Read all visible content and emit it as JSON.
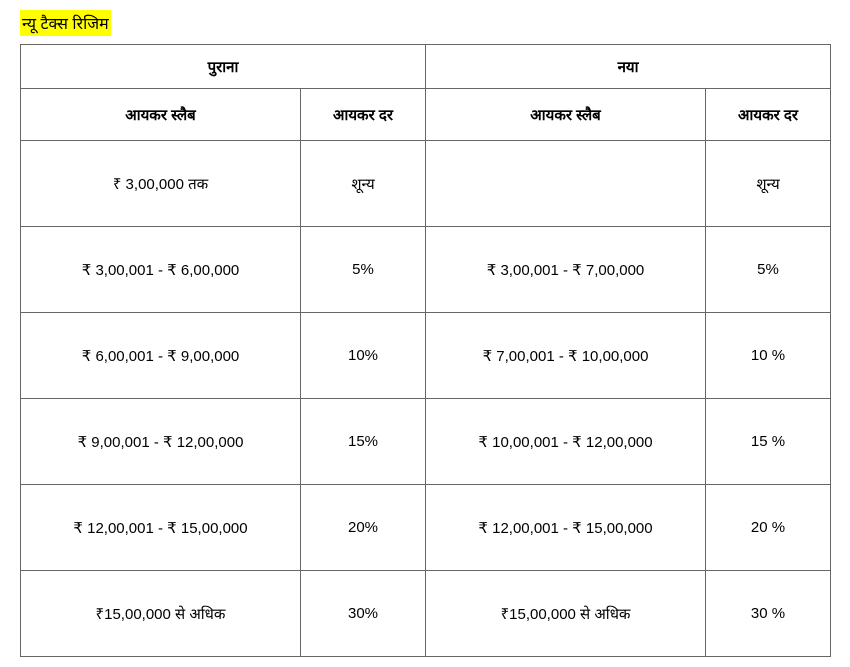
{
  "title": "न्यू टैक्स रिजिम",
  "table": {
    "type": "table",
    "background_color": "#ffffff",
    "border_color": "#666666",
    "text_color": "#000000",
    "font_size": 15,
    "header_font_weight": 700,
    "title_highlight_color": "#ffff00",
    "top_headers": {
      "old": "पुराना",
      "new": "नया"
    },
    "sub_headers": {
      "slab": "आयकर स्लैब",
      "rate": "आयकर दर"
    },
    "rows": [
      {
        "old_slab": "₹ 3,00,000 तक",
        "old_rate": "शून्य",
        "new_slab": "",
        "new_rate": "शून्य"
      },
      {
        "old_slab": "₹ 3,00,001 - ₹ 6,00,000",
        "old_rate": "5%",
        "new_slab": "₹ 3,00,001 - ₹ 7,00,000",
        "new_rate": "5%"
      },
      {
        "old_slab": "₹ 6,00,001 - ₹ 9,00,000",
        "old_rate": "10%",
        "new_slab": "₹ 7,00,001 - ₹ 10,00,000",
        "new_rate": "10 %"
      },
      {
        "old_slab": "₹ 9,00,001 - ₹ 12,00,000",
        "old_rate": "15%",
        "new_slab": "₹ 10,00,001 - ₹ 12,00,000",
        "new_rate": "15 %"
      },
      {
        "old_slab": "₹ 12,00,001 - ₹ 15,00,000",
        "old_rate": "20%",
        "new_slab": "₹ 12,00,001 - ₹ 15,00,000",
        "new_rate": "20 %"
      },
      {
        "old_slab": "₹15,00,000 से अधिक",
        "old_rate": "30%",
        "new_slab": "₹15,00,000 से अधिक",
        "new_rate": "30 %"
      }
    ]
  }
}
